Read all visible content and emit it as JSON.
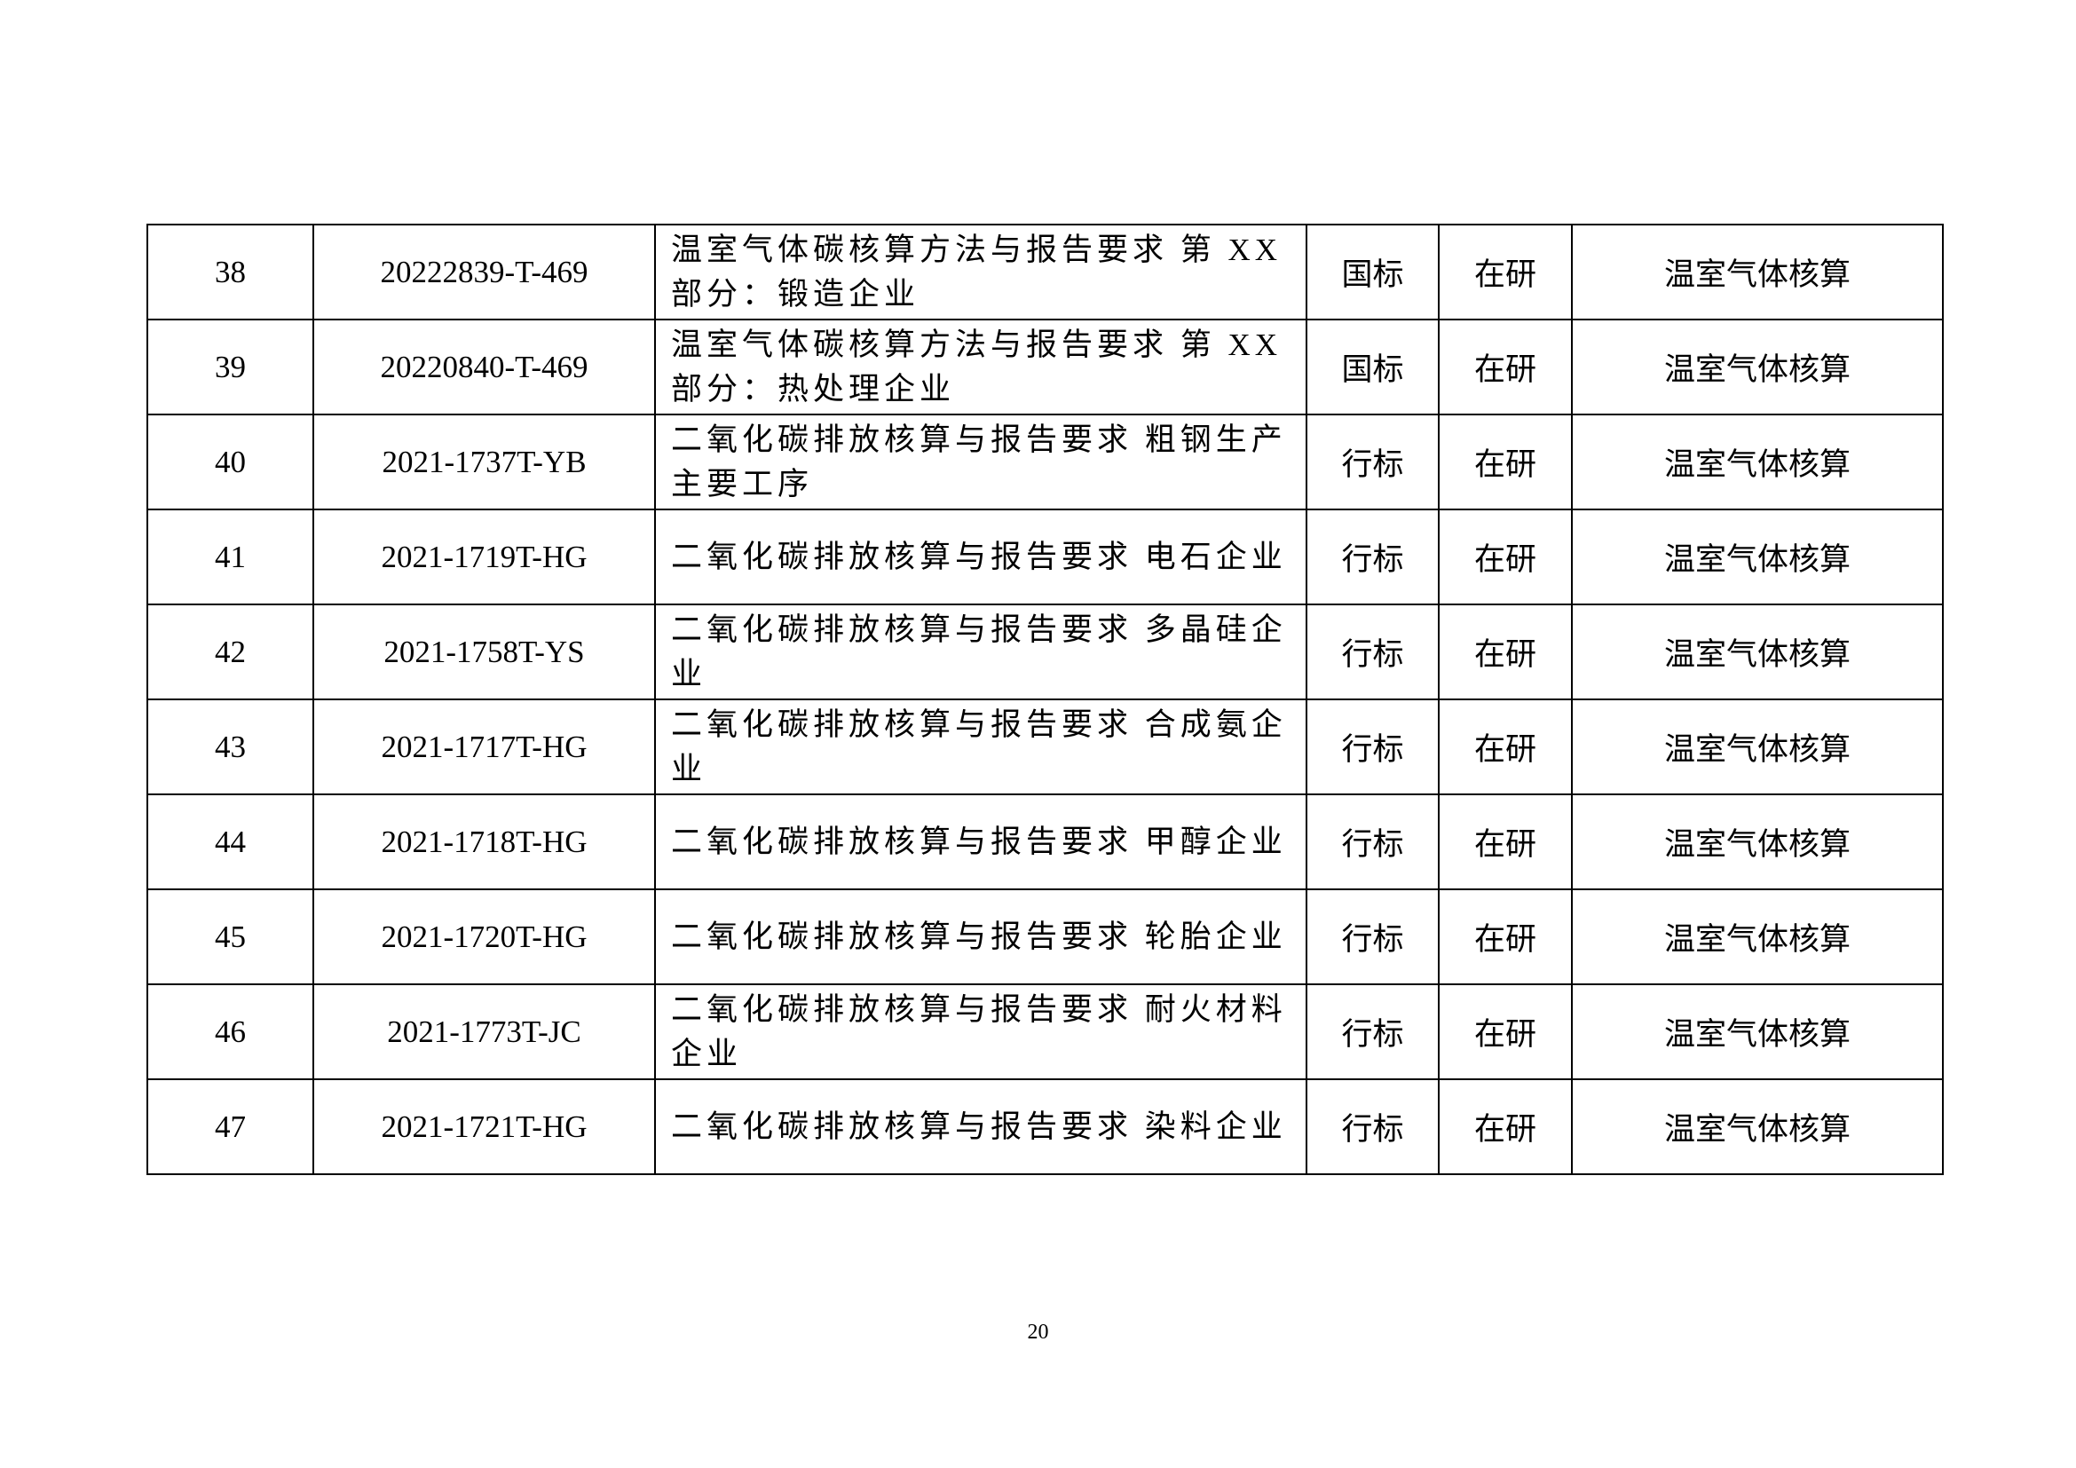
{
  "rows": [
    {
      "no": "38",
      "code": "20222839-T-469",
      "title_lines": [
        "温室气体碳核算方法与报告要求 第 XX",
        "部分：锻造企业"
      ],
      "type": "国标",
      "status": "在研",
      "category": "温室气体核算"
    },
    {
      "no": "39",
      "code": "20220840-T-469",
      "title_lines": [
        "温室气体碳核算方法与报告要求 第 XX",
        "部分：热处理企业"
      ],
      "type": "国标",
      "status": "在研",
      "category": "温室气体核算"
    },
    {
      "no": "40",
      "code": "2021-1737T-YB",
      "title_lines": [
        "二氧化碳排放核算与报告要求 粗钢生产",
        "主要工序"
      ],
      "type": "行标",
      "status": "在研",
      "category": "温室气体核算"
    },
    {
      "no": "41",
      "code": "2021-1719T-HG",
      "title_lines": [
        "二氧化碳排放核算与报告要求 电石企业"
      ],
      "type": "行标",
      "status": "在研",
      "category": "温室气体核算"
    },
    {
      "no": "42",
      "code": "2021-1758T-YS",
      "title_lines": [
        "二氧化碳排放核算与报告要求 多晶硅企",
        "业"
      ],
      "type": "行标",
      "status": "在研",
      "category": "温室气体核算"
    },
    {
      "no": "43",
      "code": "2021-1717T-HG",
      "title_lines": [
        "二氧化碳排放核算与报告要求 合成氨企",
        "业"
      ],
      "type": "行标",
      "status": "在研",
      "category": "温室气体核算"
    },
    {
      "no": "44",
      "code": "2021-1718T-HG",
      "title_lines": [
        "二氧化碳排放核算与报告要求 甲醇企业"
      ],
      "type": "行标",
      "status": "在研",
      "category": "温室气体核算"
    },
    {
      "no": "45",
      "code": "2021-1720T-HG",
      "title_lines": [
        "二氧化碳排放核算与报告要求 轮胎企业"
      ],
      "type": "行标",
      "status": "在研",
      "category": "温室气体核算"
    },
    {
      "no": "46",
      "code": "2021-1773T-JC",
      "title_lines": [
        "二氧化碳排放核算与报告要求 耐火材料",
        "企业"
      ],
      "type": "行标",
      "status": "在研",
      "category": "温室气体核算"
    },
    {
      "no": "47",
      "code": "2021-1721T-HG",
      "title_lines": [
        "二氧化碳排放核算与报告要求 染料企业"
      ],
      "type": "行标",
      "status": "在研",
      "category": "温室气体核算"
    }
  ],
  "page_number": "20"
}
